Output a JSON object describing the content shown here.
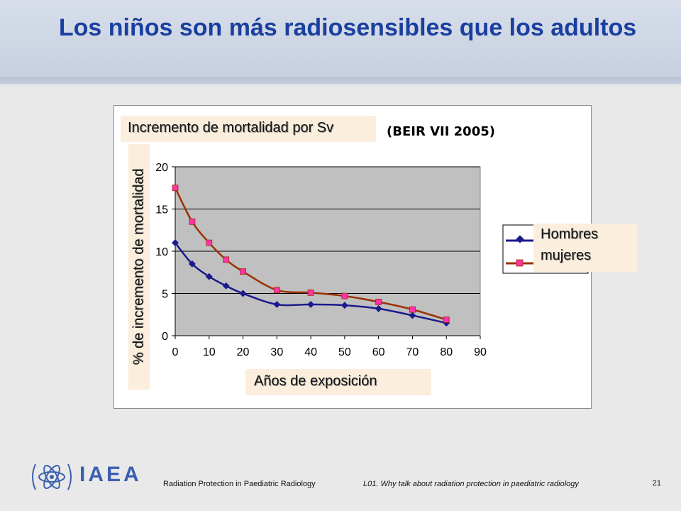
{
  "slide": {
    "title": "Los niños son más radiosensibles que los adultos",
    "page_number": "21"
  },
  "footer": {
    "org_name": "IAEA",
    "course_title": "Radiation Protection in Paediatric Radiology",
    "lecture_title": "L01. Why talk about radiation protection in paediatric radiology"
  },
  "chart_data": {
    "type": "line",
    "title": "Incremento de mortalidad por Sv",
    "source": "(BEIR VII 2005)",
    "xlabel": "Años de exposición",
    "ylabel": "% de incremento de mortalidad",
    "xlim": [
      0,
      90
    ],
    "ylim": [
      0,
      20
    ],
    "xticks": [
      0,
      10,
      20,
      30,
      40,
      50,
      60,
      70,
      80,
      90
    ],
    "yticks": [
      0,
      5,
      10,
      15,
      20
    ],
    "grid": true,
    "legend_position": "right",
    "series": [
      {
        "name": "Hombres",
        "color": "#1a1a8c",
        "marker": "diamond",
        "x": [
          0,
          5,
          10,
          15,
          20,
          30,
          40,
          50,
          60,
          70,
          80
        ],
        "values": [
          11.0,
          8.5,
          7.0,
          5.9,
          5.0,
          3.7,
          3.7,
          3.6,
          3.2,
          2.4,
          1.5
        ]
      },
      {
        "name": "mujeres",
        "color": "#993300",
        "marker_color": "#ff33aa",
        "marker": "square",
        "x": [
          0,
          5,
          10,
          15,
          20,
          30,
          40,
          50,
          60,
          70,
          80
        ],
        "values": [
          17.5,
          13.5,
          11.0,
          9.0,
          7.6,
          5.4,
          5.1,
          4.7,
          4.0,
          3.1,
          1.9
        ]
      }
    ]
  },
  "colors": {
    "title": "#1a3fa0",
    "plot_background": "#c0c0c0",
    "label_box": "#fbeedc"
  }
}
